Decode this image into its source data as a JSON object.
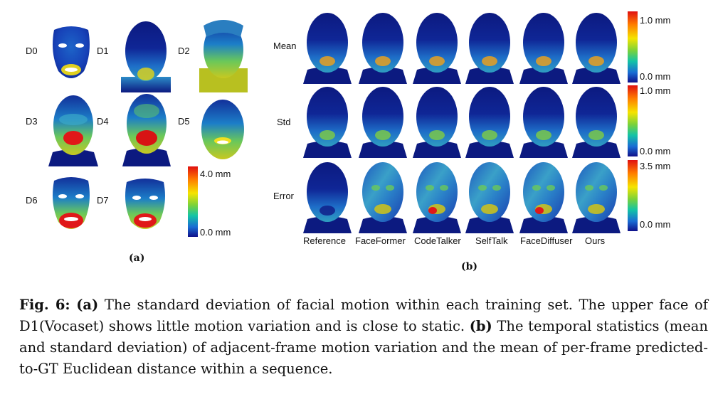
{
  "panel_a": {
    "labels": [
      "D0",
      "D1",
      "D2",
      "D3",
      "D4",
      "D5",
      "D6",
      "D7"
    ],
    "colorbar": {
      "max": "4.0 mm",
      "min": "0.0 mm"
    },
    "subcaption": "(a)"
  },
  "panel_b": {
    "rows": [
      "Mean",
      "Std",
      "Error"
    ],
    "columns": [
      "Reference",
      "FaceFormer",
      "CodeTalker",
      "SelfTalk",
      "FaceDiffuser",
      "Ours"
    ],
    "colorbars": [
      {
        "max": "1.0 mm",
        "min": "0.0 mm"
      },
      {
        "max": "1.0 mm",
        "min": "0.0 mm"
      },
      {
        "max": "3.5 mm",
        "min": "0.0 mm"
      }
    ],
    "subcaption": "(b)"
  },
  "caption": {
    "fig_label": "Fig. 6:",
    "a_label": "(a)",
    "a_text": " The standard deviation of facial motion within each training set. The upper face of D1(Vocaset) shows little motion variation and is close to static. ",
    "b_label": "(b)",
    "b_text": " The temporal statistics (mean and standard deviation) of adjacent-frame motion variation and the mean of per-frame predicted-to-GT Euclidean distance within a sequence."
  },
  "colors": {
    "low": "#10108a",
    "mid": "#f5e400",
    "high": "#e01010"
  }
}
